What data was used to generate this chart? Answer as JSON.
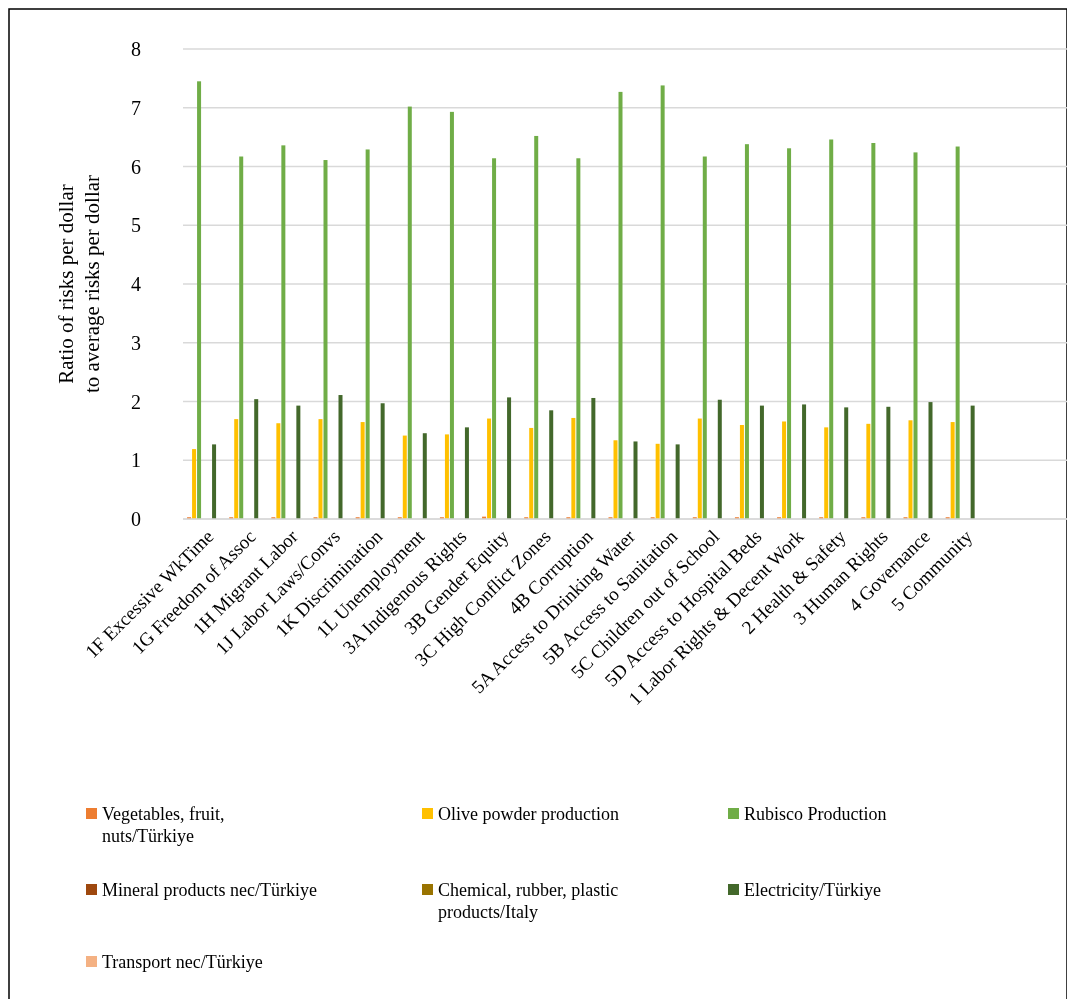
{
  "chart_data": {
    "type": "bar",
    "ylabel": "Ratio of risks per dollar\nto average risks per dollar",
    "categories": [
      "1F Excessive WkTime",
      "1G Freedom of Assoc",
      "1H Migrant Labor",
      "1J Labor Laws/Convs",
      "1K Discrimination",
      "1L Unemployment",
      "3A Indigenous Rights",
      "3B Gender Equity",
      "3C High Conflict Zones",
      "4B Corruption",
      "5A Access to Drinking Water",
      "5B Access to Sanitation",
      "5C Children out of School",
      "5D Access to Hospital Beds",
      "1 Labor Rights & Decent Work",
      "2 Health & Safety",
      "3 Human Rights",
      "4 Governance",
      "5 Community",
      null,
      null
    ],
    "series": [
      {
        "name": "Vegetables, fruit, nuts/Türkiye",
        "color": "#ed7d31",
        "values": [
          0.03,
          0.03,
          0.03,
          0.03,
          0.03,
          0.03,
          0.03,
          0.04,
          0.03,
          0.03,
          0.03,
          0.03,
          0.03,
          0.03,
          0.03,
          0.03,
          0.03,
          0.03,
          0.03,
          null,
          null
        ]
      },
      {
        "name": "Olive powder production",
        "color": "#ffc000",
        "values": [
          1.19,
          1.7,
          1.63,
          1.7,
          1.65,
          1.42,
          1.44,
          1.71,
          1.55,
          1.72,
          1.34,
          1.28,
          1.71,
          1.6,
          1.66,
          1.56,
          1.62,
          1.68,
          1.65,
          null,
          null
        ]
      },
      {
        "name": "Rubisco Production",
        "color": "#70ad47",
        "values": [
          7.45,
          6.17,
          6.36,
          6.11,
          6.29,
          7.02,
          6.93,
          6.14,
          6.52,
          6.14,
          7.27,
          7.38,
          6.17,
          6.38,
          6.31,
          6.46,
          6.4,
          6.24,
          6.34,
          null,
          null
        ]
      },
      {
        "name": "Mineral products nec/Türkiye",
        "color": "#9e480e",
        "values": [
          0,
          0,
          0,
          0,
          0,
          0,
          0,
          0,
          0,
          0,
          0,
          0,
          0,
          0,
          0,
          0,
          0,
          0,
          0,
          null,
          null
        ]
      },
      {
        "name": "Chemical, rubber, plastic products/Italy",
        "color": "#997300",
        "values": [
          0,
          0,
          0,
          0,
          0,
          0,
          0,
          0,
          0,
          0,
          0,
          0,
          0,
          0,
          0,
          0,
          0,
          0,
          0,
          null,
          null
        ]
      },
      {
        "name": "Electricity/Türkiye",
        "color": "#43682b",
        "values": [
          1.27,
          2.04,
          1.93,
          2.11,
          1.97,
          1.46,
          1.56,
          2.07,
          1.85,
          2.06,
          1.32,
          1.27,
          2.03,
          1.93,
          1.95,
          1.9,
          1.91,
          1.99,
          1.93,
          null,
          null
        ]
      },
      {
        "name": "Transport nec/Türkiye",
        "color": "#f4b183",
        "values": [
          0,
          0,
          0,
          0,
          0,
          0,
          0,
          0,
          0,
          0,
          0,
          0,
          0,
          0,
          0,
          0,
          0,
          0,
          0,
          null,
          null
        ]
      }
    ],
    "ylim": [
      0,
      8
    ],
    "yticks": [
      0,
      1,
      2,
      3,
      4,
      5,
      6,
      7,
      8
    ],
    "grid": "y",
    "legend": "bottom"
  }
}
